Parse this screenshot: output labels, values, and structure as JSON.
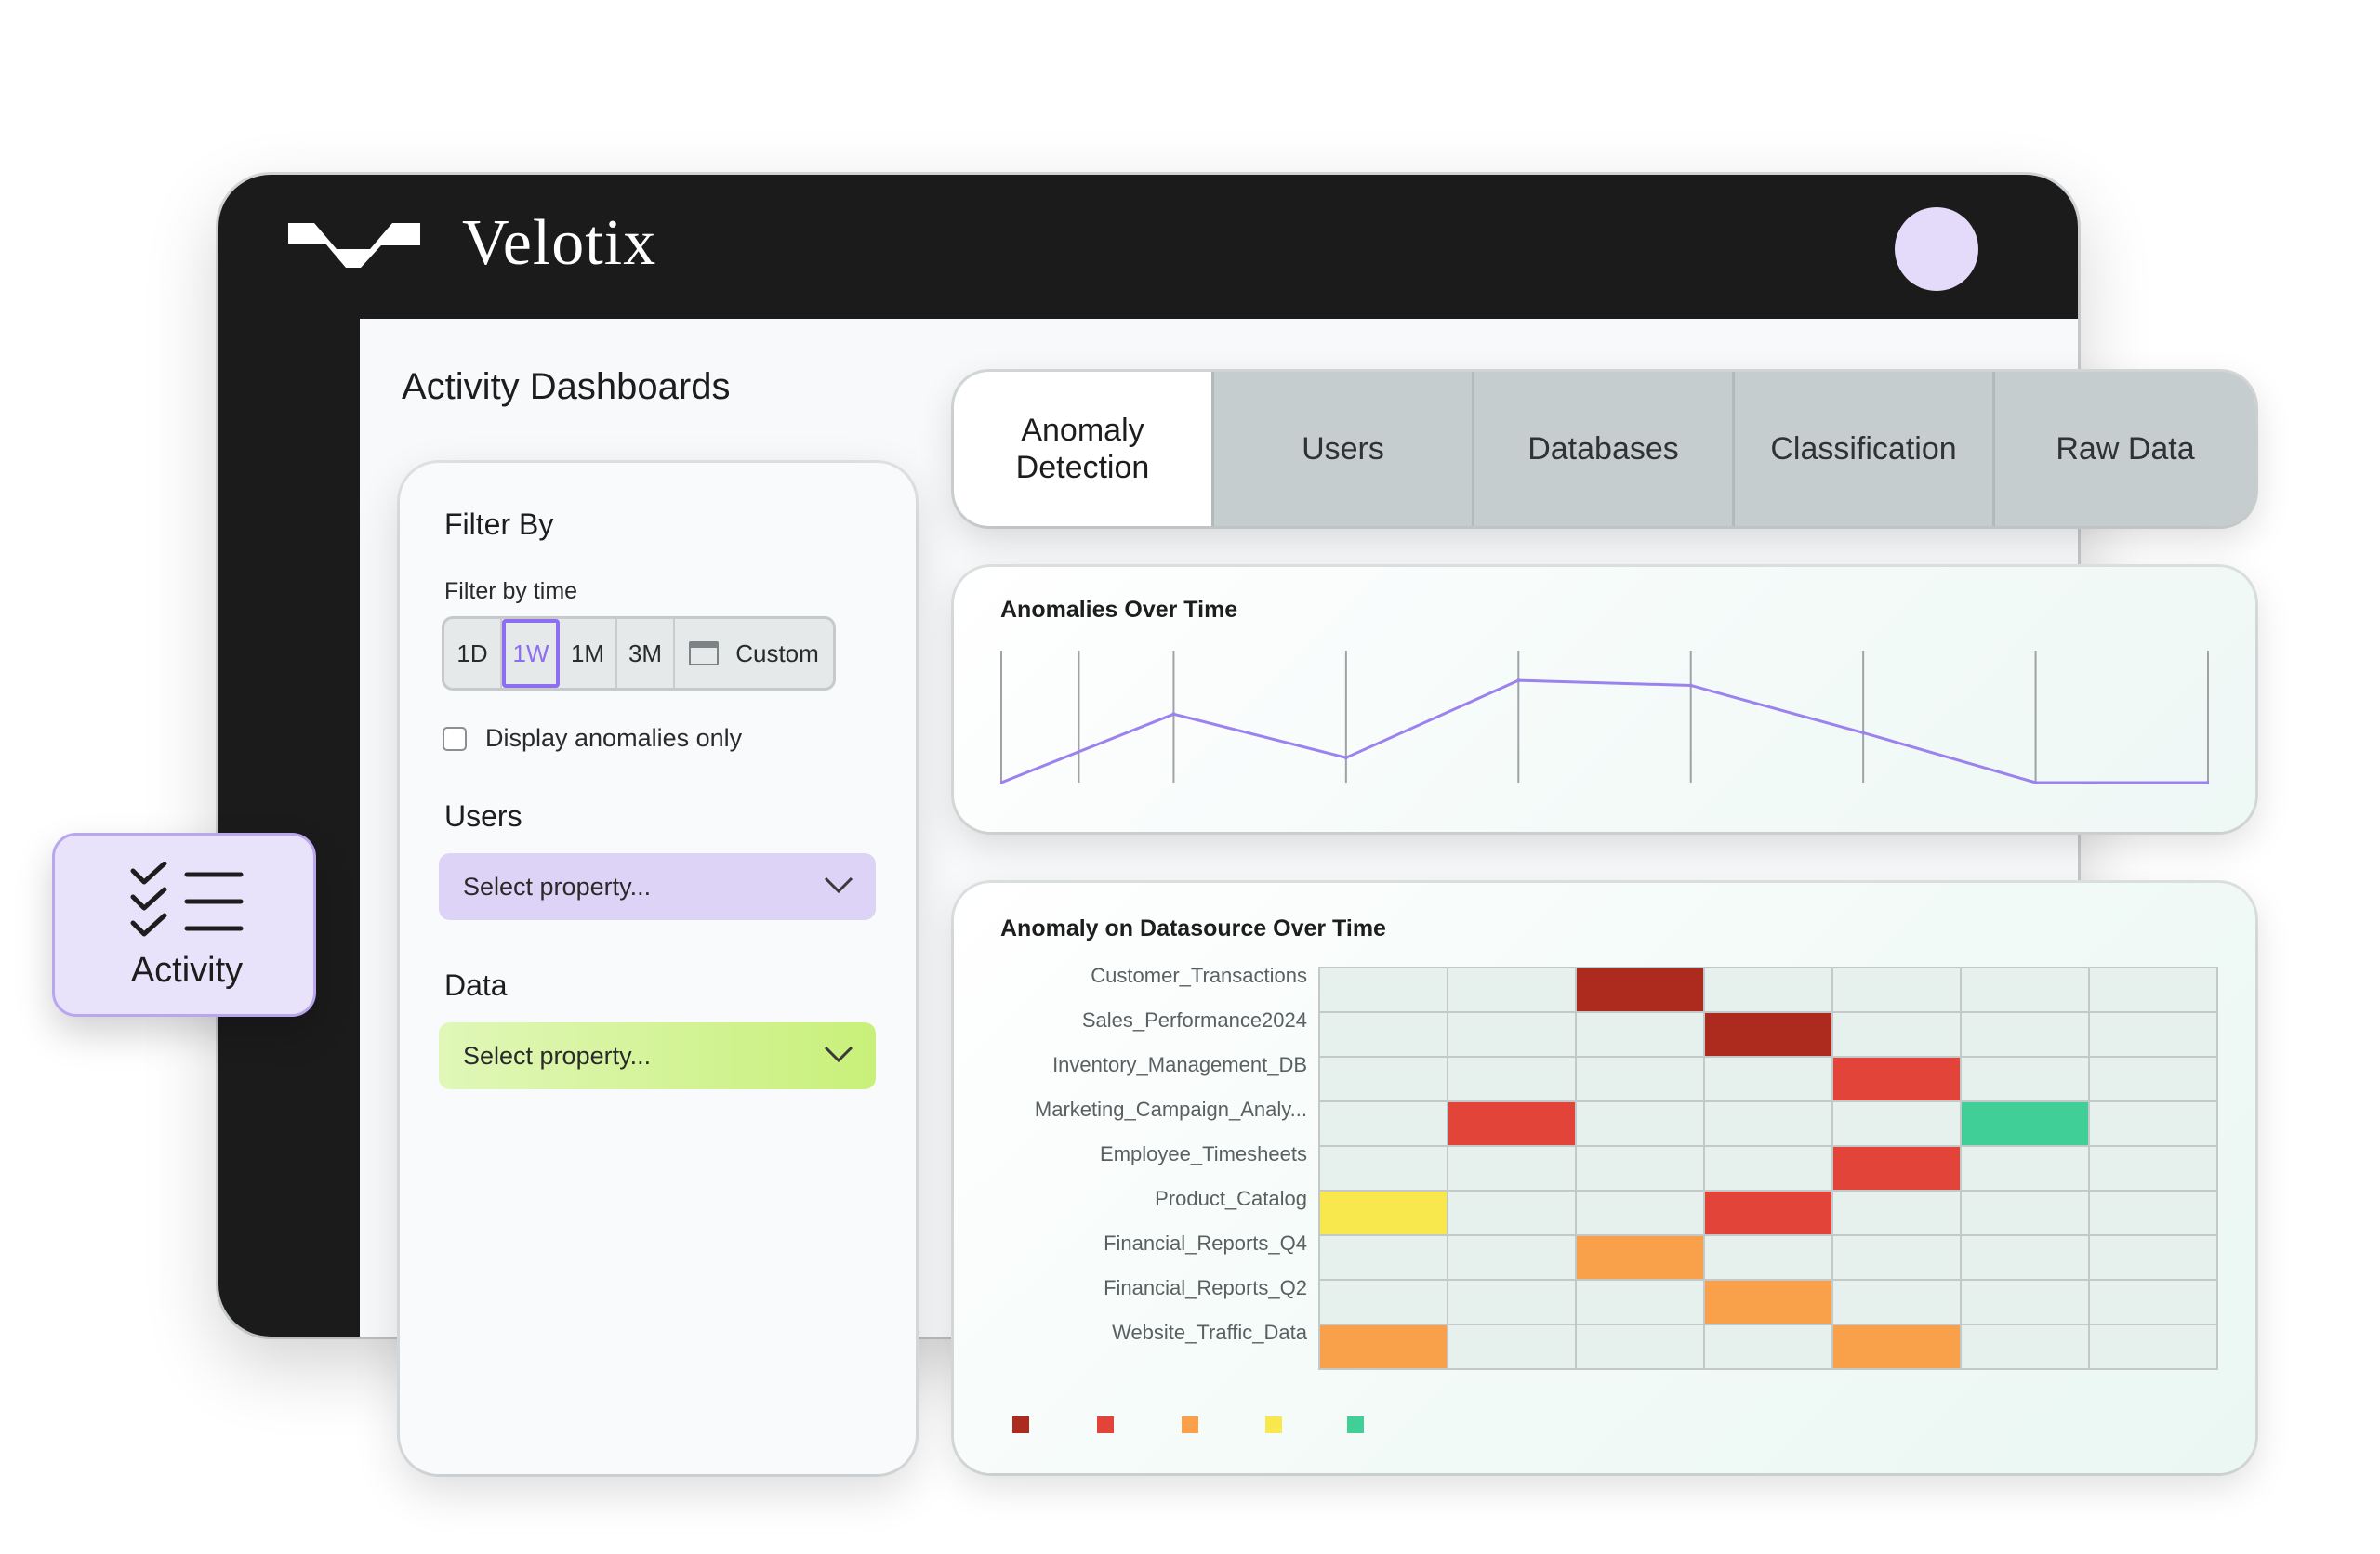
{
  "app": {
    "brand": "Velotix",
    "page_title": "Activity Dashboards"
  },
  "filter": {
    "heading": "Filter By",
    "time_label": "Filter by time",
    "time_options": [
      "1D",
      "1W",
      "1M",
      "3M"
    ],
    "custom_label": "Custom",
    "selected_time": "1W",
    "anomalies_only_label": "Display anomalies only",
    "anomalies_only_checked": false,
    "users_heading": "Users",
    "users_placeholder": "Select property...",
    "data_heading": "Data",
    "data_placeholder": "Select property..."
  },
  "tabs": [
    {
      "label": "Anomaly\nDetection",
      "active": true
    },
    {
      "label": "Users",
      "active": false
    },
    {
      "label": "Databases",
      "active": false
    },
    {
      "label": "Classification",
      "active": false
    },
    {
      "label": "Raw Data",
      "active": false
    }
  ],
  "badge": {
    "label": "Activity",
    "icon": "checklist-icon"
  },
  "colors": {
    "accent": "#8d6df0",
    "header": "#1b1b1b",
    "users_dropdown": "#dcd3f6",
    "data_dropdown": "#c9f07a",
    "cell_empty": "#e6f1ee"
  },
  "chart_data": [
    {
      "type": "line",
      "title": "Anomalies Over Time",
      "x": [
        0,
        1,
        2,
        3,
        4,
        5,
        6,
        7
      ],
      "y": [
        0,
        0.55,
        0.2,
        0.82,
        0.78,
        0.4,
        0,
        0
      ],
      "ylim": [
        0,
        1
      ],
      "color": "#9b82ee",
      "grid": "vertical"
    },
    {
      "type": "heatmap",
      "title": "Anomaly on Datasource Over Time",
      "rows": [
        "Customer_Transactions",
        "Sales_Performance2024",
        "Inventory_Management_DB",
        "Marketing_Campaign_Analy...",
        "Employee_Timesheets",
        "Product_Catalog",
        "Financial_Reports_Q4",
        "Financial_Reports_Q2",
        "Website_Traffic_Data"
      ],
      "columns": 7,
      "cells": [
        [
          0,
          0,
          1,
          0,
          0,
          0,
          0
        ],
        [
          0,
          0,
          0,
          1,
          0,
          0,
          0
        ],
        [
          0,
          0,
          0,
          0,
          2,
          0,
          0
        ],
        [
          0,
          2,
          0,
          0,
          0,
          5,
          0
        ],
        [
          0,
          0,
          0,
          0,
          2,
          0,
          0
        ],
        [
          4,
          0,
          0,
          2,
          0,
          0,
          0
        ],
        [
          0,
          0,
          3,
          0,
          0,
          0,
          0
        ],
        [
          0,
          0,
          0,
          3,
          0,
          0,
          0
        ],
        [
          3,
          0,
          0,
          0,
          3,
          0,
          0
        ]
      ],
      "levels": [
        "#e6f1ee",
        "#ad2a1f",
        "#e2443a",
        "#f9a04a",
        "#f8e84e",
        "#40cf96"
      ],
      "legend": [
        "#ad2a1f",
        "#e2443a",
        "#f9a04a",
        "#f8e84e",
        "#40cf96"
      ]
    }
  ]
}
